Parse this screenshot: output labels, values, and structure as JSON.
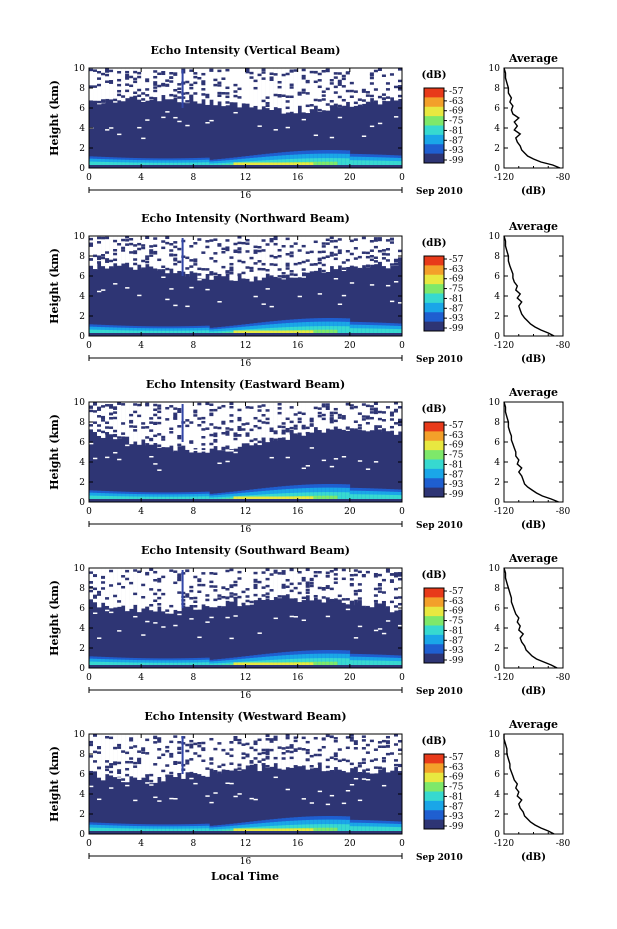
{
  "chart_data": [
    {
      "type": "heatmap",
      "title": "Echo Intensity (Vertical Beam)",
      "ylabel": "Height (km)",
      "xlim": [
        0,
        24
      ],
      "ylim": [
        0,
        10
      ],
      "x_ticks": [
        "0",
        "4",
        "8",
        "12",
        "16",
        "20",
        "0"
      ],
      "y_ticks": [
        "0",
        "2",
        "4",
        "6",
        "8",
        "10"
      ],
      "date_label": "16",
      "month_label": "Sep 2010",
      "colorbar": {
        "unit": "(dB)",
        "ticks": [
          "-57",
          "-63",
          "-69",
          "-75",
          "-81",
          "-87",
          "-93",
          "-99"
        ]
      },
      "profile": {
        "title": "Average",
        "xlabel": "(dB)",
        "xlim": [
          -120,
          -80
        ],
        "x_ticks": [
          "-120",
          "-80"
        ],
        "y_ticks": [
          "0",
          "2",
          "4",
          "6",
          "8",
          "10"
        ],
        "heights": [
          0,
          0.3,
          0.6,
          0.9,
          1.2,
          1.5,
          1.8,
          2.2,
          2.6,
          3.0,
          3.4,
          3.8,
          4.2,
          4.6,
          5.0,
          5.4,
          5.8,
          6.2,
          6.6,
          7.0,
          7.5,
          8.0,
          8.5,
          9.0,
          9.5,
          10
        ],
        "values": [
          -82,
          -87,
          -95,
          -100,
          -104,
          -106,
          -108,
          -109,
          -111,
          -112,
          -109,
          -113,
          -111,
          -113,
          -110,
          -114,
          -115,
          -114,
          -116,
          -115,
          -117,
          -117,
          -118,
          -119,
          -119,
          -120
        ]
      }
    },
    {
      "type": "heatmap",
      "title": "Echo Intensity (Northward Beam)",
      "ylabel": "Height (km)",
      "xlim": [
        0,
        24
      ],
      "ylim": [
        0,
        10
      ],
      "x_ticks": [
        "0",
        "4",
        "8",
        "12",
        "16",
        "20",
        "0"
      ],
      "y_ticks": [
        "0",
        "2",
        "4",
        "6",
        "8",
        "10"
      ],
      "date_label": "16",
      "month_label": "Sep 2010",
      "colorbar": {
        "unit": "(dB)",
        "ticks": [
          "-57",
          "-63",
          "-69",
          "-75",
          "-81",
          "-87",
          "-93",
          "-99"
        ]
      },
      "profile": {
        "title": "Average",
        "xlabel": "(dB)",
        "xlim": [
          -120,
          -80
        ],
        "x_ticks": [
          "-120",
          "-80"
        ],
        "y_ticks": [
          "0",
          "2",
          "4",
          "6",
          "8",
          "10"
        ],
        "heights": [
          0,
          0.3,
          0.6,
          0.9,
          1.2,
          1.5,
          1.8,
          2.2,
          2.6,
          3.0,
          3.4,
          3.8,
          4.2,
          4.6,
          5.0,
          5.4,
          5.8,
          6.2,
          6.6,
          7.0,
          7.5,
          8.0,
          8.5,
          9.0,
          9.5,
          10
        ],
        "values": [
          -86,
          -90,
          -95,
          -99,
          -102,
          -104,
          -106,
          -108,
          -109,
          -110,
          -108,
          -111,
          -109,
          -112,
          -111,
          -113,
          -114,
          -114,
          -115,
          -116,
          -117,
          -117,
          -118,
          -119,
          -119,
          -120
        ]
      }
    },
    {
      "type": "heatmap",
      "title": "Echo Intensity (Eastward Beam)",
      "ylabel": "Height (km)",
      "xlim": [
        0,
        24
      ],
      "ylim": [
        0,
        10
      ],
      "x_ticks": [
        "0",
        "4",
        "8",
        "12",
        "16",
        "20",
        "0"
      ],
      "y_ticks": [
        "0",
        "2",
        "4",
        "6",
        "8",
        "10"
      ],
      "date_label": "16",
      "month_label": "Sep 2010",
      "colorbar": {
        "unit": "(dB)",
        "ticks": [
          "-57",
          "-63",
          "-69",
          "-75",
          "-81",
          "-87",
          "-93",
          "-99"
        ]
      },
      "profile": {
        "title": "Average",
        "xlabel": "(dB)",
        "xlim": [
          -120,
          -80
        ],
        "x_ticks": [
          "-120",
          "-80"
        ],
        "y_ticks": [
          "0",
          "2",
          "4",
          "6",
          "8",
          "10"
        ],
        "heights": [
          0,
          0.3,
          0.6,
          0.9,
          1.2,
          1.5,
          1.8,
          2.2,
          2.6,
          3.0,
          3.4,
          3.8,
          4.2,
          4.6,
          5.0,
          5.4,
          5.8,
          6.2,
          6.6,
          7.0,
          7.5,
          8.0,
          8.5,
          9.0,
          9.5,
          10
        ],
        "values": [
          -83,
          -88,
          -94,
          -98,
          -101,
          -104,
          -106,
          -107,
          -108,
          -110,
          -108,
          -111,
          -110,
          -112,
          -112,
          -113,
          -114,
          -115,
          -115,
          -116,
          -117,
          -117,
          -118,
          -119,
          -119,
          -120
        ]
      }
    },
    {
      "type": "heatmap",
      "title": "Echo Intensity (Southward Beam)",
      "ylabel": "Height (km)",
      "xlim": [
        0,
        24
      ],
      "ylim": [
        0,
        10
      ],
      "x_ticks": [
        "0",
        "4",
        "8",
        "12",
        "16",
        "20",
        "0"
      ],
      "y_ticks": [
        "0",
        "2",
        "4",
        "6",
        "8",
        "10"
      ],
      "date_label": "16",
      "month_label": "Sep 2010",
      "colorbar": {
        "unit": "(dB)",
        "ticks": [
          "-57",
          "-63",
          "-69",
          "-75",
          "-81",
          "-87",
          "-93",
          "-99"
        ]
      },
      "profile": {
        "title": "Average",
        "xlabel": "(dB)",
        "xlim": [
          -120,
          -80
        ],
        "x_ticks": [
          "-120",
          "-80"
        ],
        "y_ticks": [
          "0",
          "2",
          "4",
          "6",
          "8",
          "10"
        ],
        "heights": [
          0,
          0.3,
          0.6,
          0.9,
          1.2,
          1.5,
          1.8,
          2.2,
          2.6,
          3.0,
          3.4,
          3.8,
          4.2,
          4.6,
          5.0,
          5.4,
          5.8,
          6.2,
          6.6,
          7.0,
          7.5,
          8.0,
          8.5,
          9.0,
          9.5,
          10
        ],
        "values": [
          -84,
          -88,
          -93,
          -98,
          -101,
          -103,
          -105,
          -106,
          -108,
          -109,
          -107,
          -110,
          -109,
          -111,
          -110,
          -112,
          -113,
          -114,
          -115,
          -115,
          -116,
          -117,
          -118,
          -119,
          -119,
          -120
        ]
      }
    },
    {
      "type": "heatmap",
      "title": "Echo Intensity (Westward Beam)",
      "ylabel": "Height (km)",
      "xlim": [
        0,
        24
      ],
      "ylim": [
        0,
        10
      ],
      "x_ticks": [
        "0",
        "4",
        "8",
        "12",
        "16",
        "20",
        "0"
      ],
      "y_ticks": [
        "0",
        "2",
        "4",
        "6",
        "8",
        "10"
      ],
      "date_label": "16",
      "month_label": "Sep 2010",
      "colorbar": {
        "unit": "(dB)",
        "ticks": [
          "-57",
          "-63",
          "-69",
          "-75",
          "-81",
          "-87",
          "-93",
          "-99"
        ]
      },
      "profile": {
        "title": "Average",
        "xlabel": "(dB)",
        "xlim": [
          -120,
          -80
        ],
        "x_ticks": [
          "-120",
          "-80"
        ],
        "y_ticks": [
          "0",
          "2",
          "4",
          "6",
          "8",
          "10"
        ],
        "heights": [
          0,
          0.3,
          0.6,
          0.9,
          1.2,
          1.5,
          1.8,
          2.2,
          2.6,
          3.0,
          3.4,
          3.8,
          4.2,
          4.6,
          5.0,
          5.4,
          5.8,
          6.2,
          6.6,
          7.0,
          7.5,
          8.0,
          8.5,
          9.0,
          9.5,
          10
        ],
        "values": [
          -86,
          -90,
          -95,
          -99,
          -102,
          -104,
          -106,
          -107,
          -109,
          -110,
          -108,
          -111,
          -110,
          -112,
          -111,
          -113,
          -114,
          -115,
          -116,
          -116,
          -117,
          -118,
          -118,
          -119,
          -120,
          -120
        ]
      }
    }
  ],
  "xlabel": "Local Time",
  "colors": {
    "background": "#2e3574",
    "colormap": [
      "#2e3574",
      "#1f5fd0",
      "#1aa6e8",
      "#37d9d0",
      "#7ee86a",
      "#e8e840",
      "#f3a02a",
      "#e83a1a"
    ]
  }
}
